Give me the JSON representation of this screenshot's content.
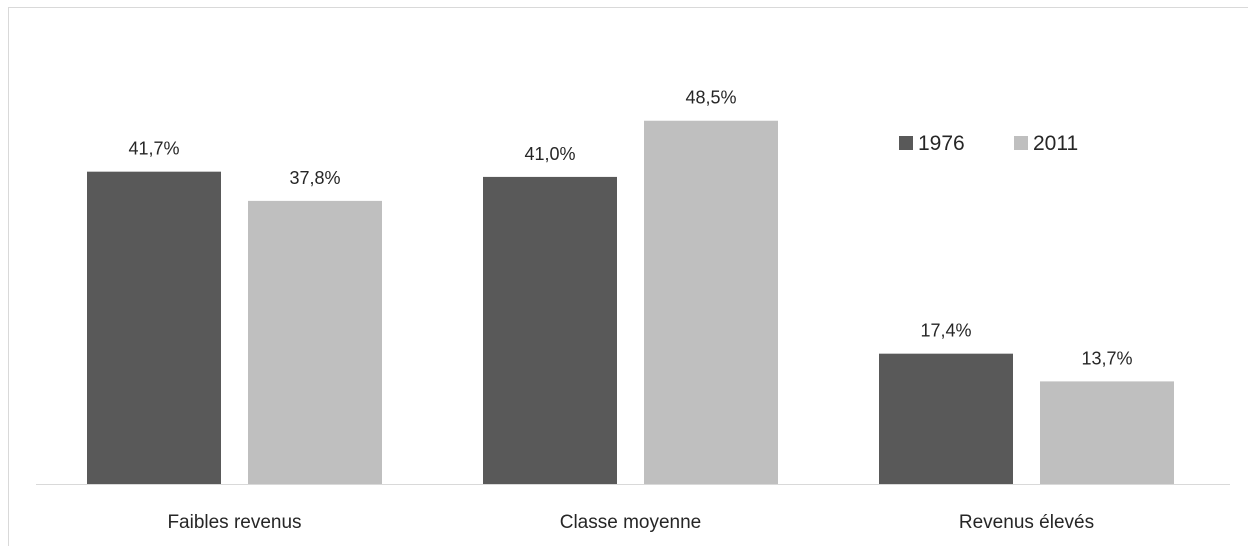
{
  "chart_data": {
    "type": "bar",
    "categories": [
      "Faibles revenus",
      "Classe moyenne",
      "Revenus élevés"
    ],
    "series": [
      {
        "name": "1976",
        "values": [
          41.7,
          41.0,
          17.4
        ],
        "labels": [
          "41,7%",
          "41,0%",
          "17,4%"
        ],
        "color": "#595959"
      },
      {
        "name": "2011",
        "values": [
          37.8,
          48.5,
          13.7
        ],
        "labels": [
          "37,8%",
          "48,5%",
          "13,7%"
        ],
        "color": "#bfbfbf"
      }
    ],
    "title": "",
    "xlabel": "",
    "ylabel": "",
    "ylim": [
      0,
      55
    ],
    "grid": false,
    "legend": "top-right",
    "axis_color": "#d9d9d9"
  }
}
